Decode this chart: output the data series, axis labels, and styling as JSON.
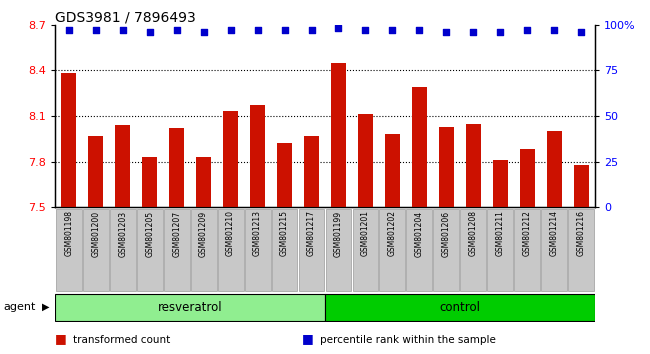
{
  "title": "GDS3981 / 7896493",
  "samples": [
    "GSM801198",
    "GSM801200",
    "GSM801203",
    "GSM801205",
    "GSM801207",
    "GSM801209",
    "GSM801210",
    "GSM801213",
    "GSM801215",
    "GSM801217",
    "GSM801199",
    "GSM801201",
    "GSM801202",
    "GSM801204",
    "GSM801206",
    "GSM801208",
    "GSM801211",
    "GSM801212",
    "GSM801214",
    "GSM801216"
  ],
  "bar_values": [
    8.38,
    7.97,
    8.04,
    7.83,
    8.02,
    7.83,
    8.13,
    8.17,
    7.92,
    7.97,
    8.45,
    8.11,
    7.98,
    8.29,
    8.03,
    8.05,
    7.81,
    7.88,
    8.0,
    7.78
  ],
  "percentile_values": [
    97,
    97,
    97,
    96,
    97,
    96,
    97,
    97,
    97,
    97,
    98,
    97,
    97,
    97,
    96,
    96,
    96,
    97,
    97,
    96
  ],
  "groups": [
    {
      "label": "resveratrol",
      "start": 0,
      "end": 10,
      "color": "#90EE90"
    },
    {
      "label": "control",
      "start": 10,
      "end": 20,
      "color": "#00CC00"
    }
  ],
  "bar_color": "#CC1100",
  "dot_color": "#0000CC",
  "ylim_left": [
    7.5,
    8.7
  ],
  "ylim_right": [
    0,
    100
  ],
  "yticks_left": [
    7.5,
    7.8,
    8.1,
    8.4,
    8.7
  ],
  "yticks_right": [
    0,
    25,
    50,
    75,
    100
  ],
  "grid_values": [
    7.8,
    8.1,
    8.4
  ],
  "legend_items": [
    {
      "color": "#CC1100",
      "label": "transformed count"
    },
    {
      "color": "#0000CC",
      "label": "percentile rank within the sample"
    }
  ],
  "bar_width": 0.55,
  "tick_bg_color": "#C8C8C8"
}
